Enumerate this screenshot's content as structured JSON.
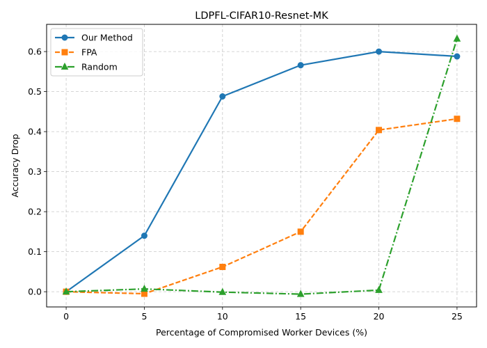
{
  "chart_data": {
    "type": "line",
    "title": "LDPFL-CIFAR10-Resnet-MK",
    "xlabel": "Percentage of Compromised Worker Devices (%)",
    "ylabel": "Accuracy Drop",
    "x": [
      0,
      5,
      10,
      15,
      20,
      25
    ],
    "xlim": [
      -1.25,
      26.25
    ],
    "ylim": [
      -0.038,
      0.668
    ],
    "xticks": [
      0,
      5,
      10,
      15,
      20,
      25
    ],
    "yticks": [
      0.0,
      0.1,
      0.2,
      0.3,
      0.4,
      0.5,
      0.6
    ],
    "xtick_labels": [
      "0",
      "5",
      "10",
      "15",
      "20",
      "25"
    ],
    "ytick_labels": [
      "0.0",
      "0.1",
      "0.2",
      "0.3",
      "0.4",
      "0.5",
      "0.6"
    ],
    "grid": true,
    "legend_position": "top-left",
    "series": [
      {
        "name": "Our Method",
        "values": [
          0.0,
          0.14,
          0.488,
          0.566,
          0.6,
          0.588
        ],
        "color": "#1f77b4",
        "linestyle": "solid",
        "marker": "circle"
      },
      {
        "name": "FPA",
        "values": [
          0.0,
          -0.005,
          0.062,
          0.15,
          0.404,
          0.432
        ],
        "color": "#ff7f0e",
        "linestyle": "dashed",
        "marker": "square"
      },
      {
        "name": "Random",
        "values": [
          0.0,
          0.007,
          -0.001,
          -0.006,
          0.004,
          0.632
        ],
        "color": "#2ca02c",
        "linestyle": "dashdot",
        "marker": "triangle"
      }
    ]
  }
}
